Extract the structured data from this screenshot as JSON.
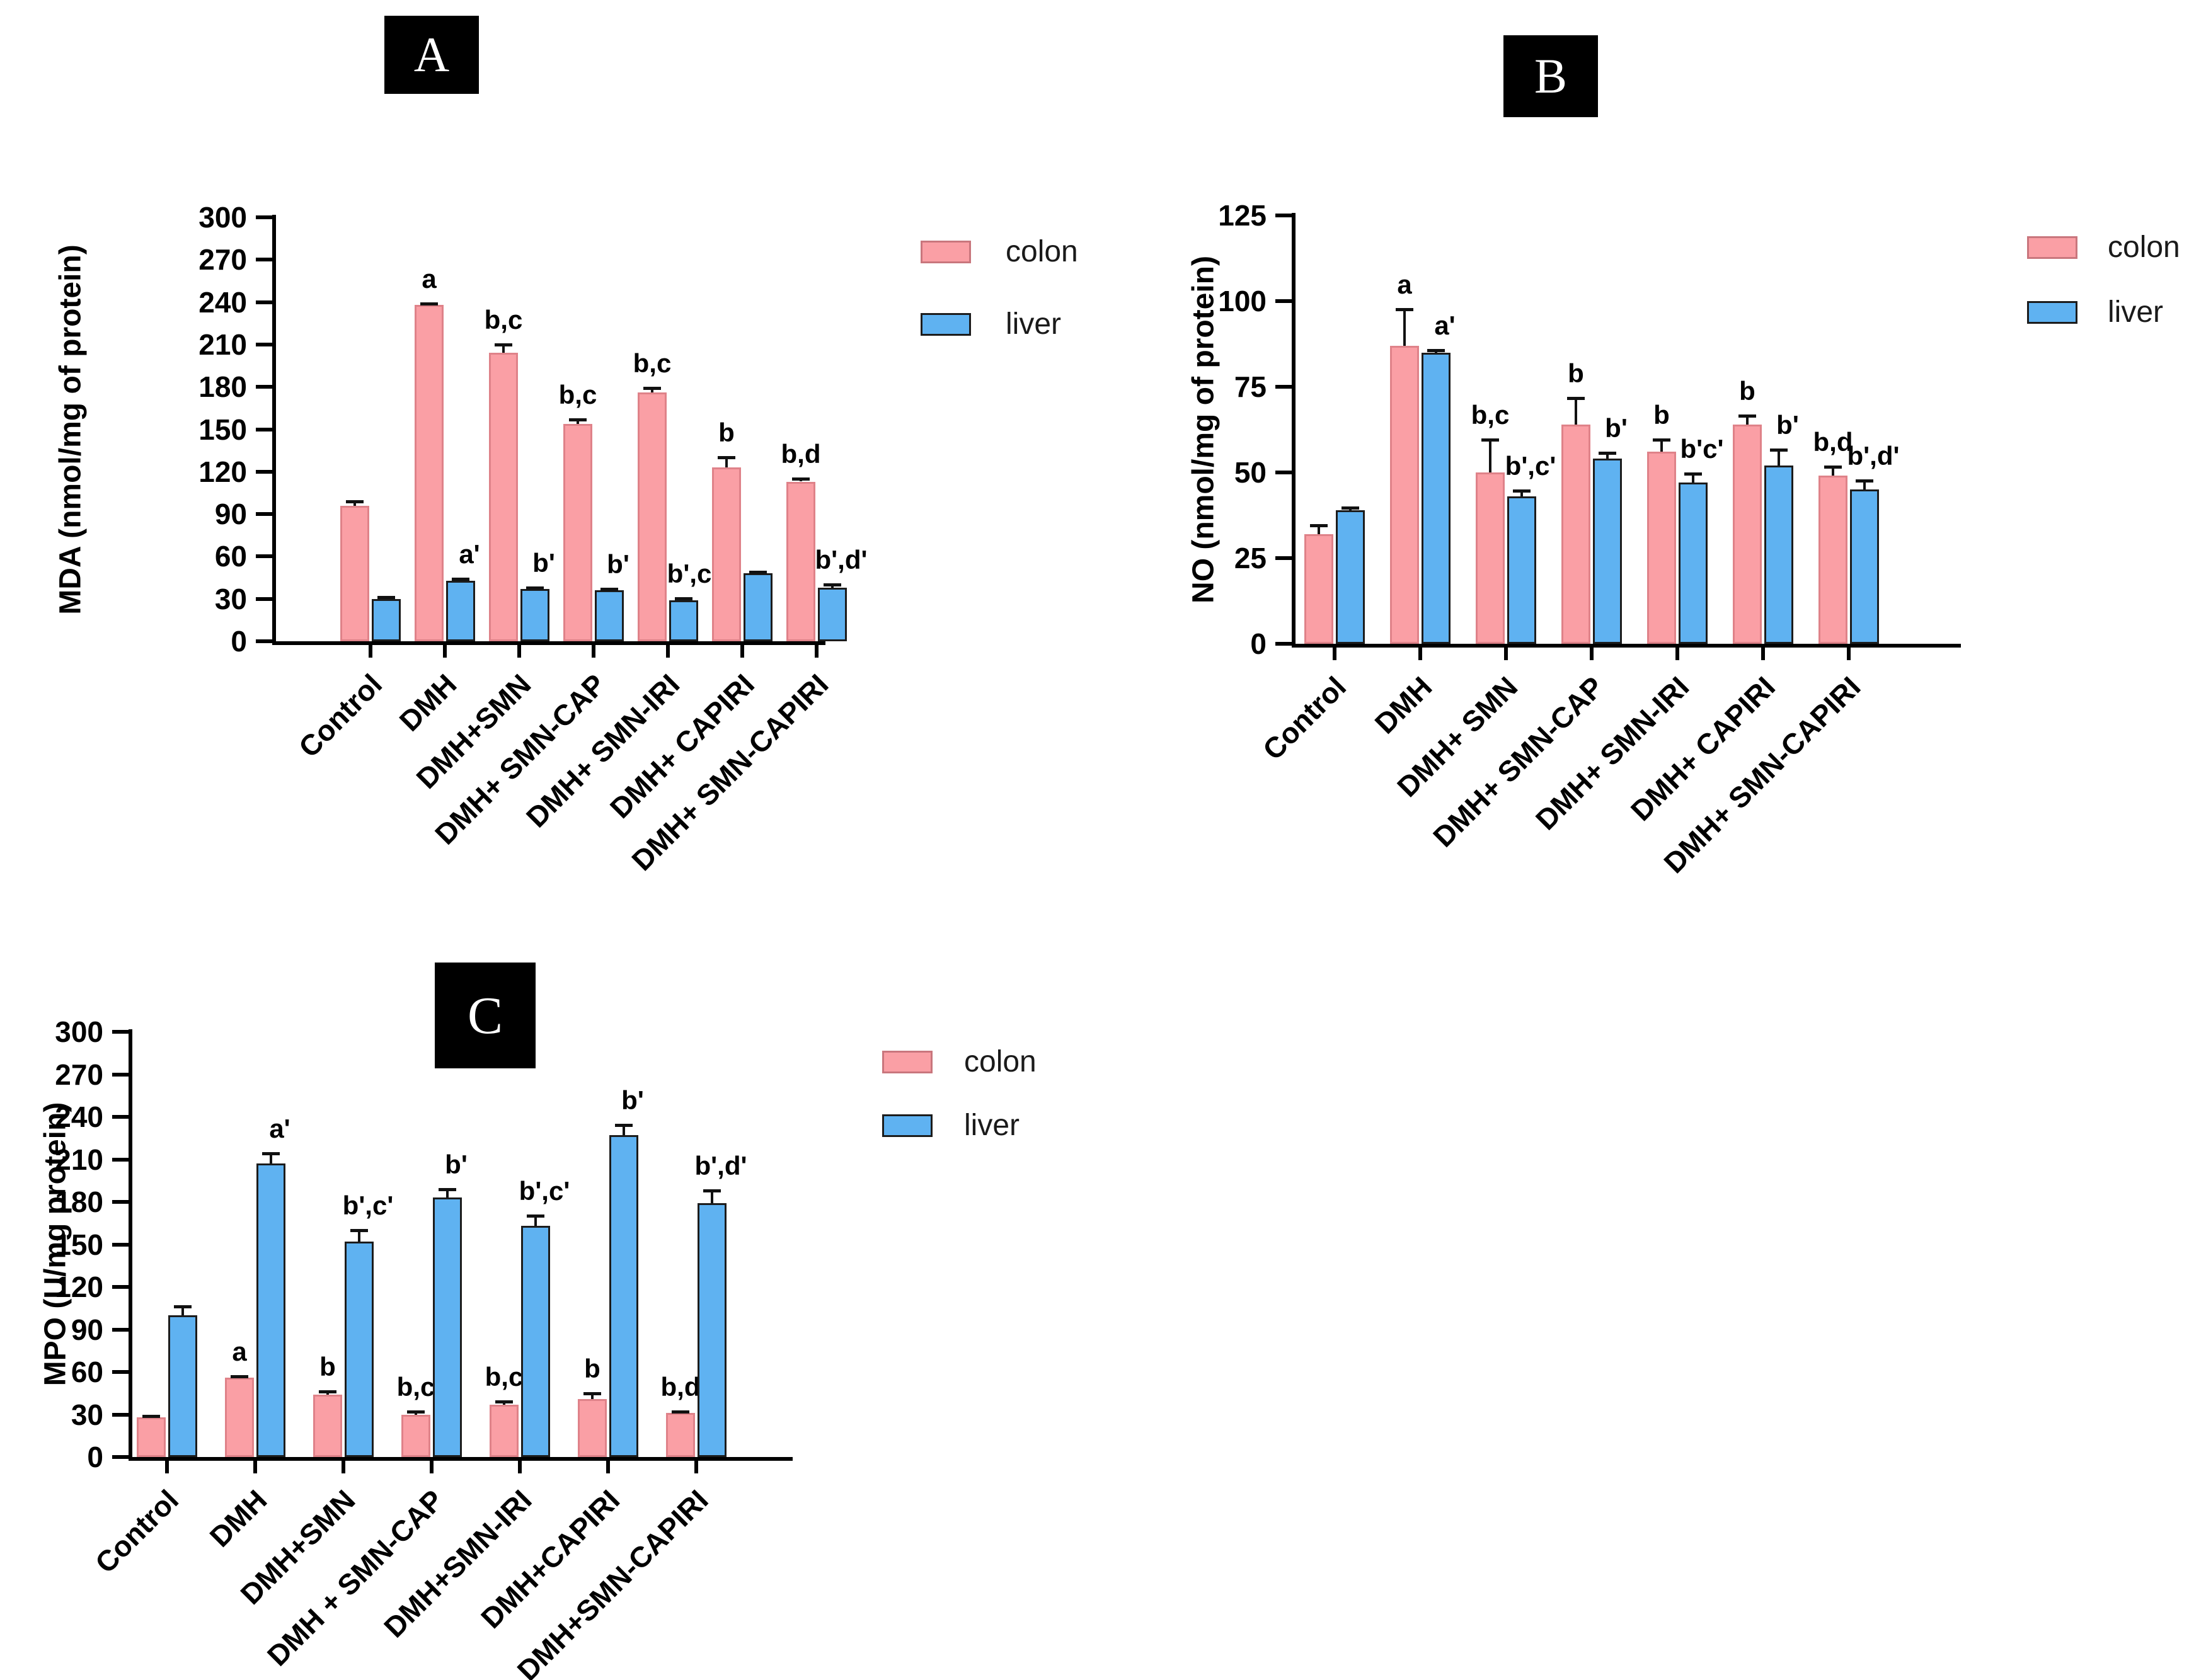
{
  "figure": {
    "background": "#ffffff",
    "legend_labels": {
      "colon": "colon",
      "liver": "liver"
    },
    "colors": {
      "colon_fill": "#fa9fa5",
      "colon_border": "#df8289",
      "liver_fill": "#5fb2f1",
      "liver_border": "#1c1c1c",
      "axis": "#000000",
      "panel_label_bg": "#000000",
      "panel_label_fg": "#ffffff"
    }
  },
  "chart_data": [
    {
      "panel_label": "A",
      "type": "bar",
      "title": "A",
      "ylabel": "MDA (nmol/mg of protein)",
      "xlabel": "",
      "ylim": [
        0,
        300
      ],
      "ytick_step": 30,
      "grid": false,
      "legend_position": "right",
      "legend": [
        "colon",
        "liver"
      ],
      "categories": [
        "Control",
        "DMH",
        "DMH+SMN",
        "DMH+ SMN-CAP",
        "DMH+ SMN-IRI",
        "DMH+ CAPIRI",
        "DMH+ SMN-CAPIRI"
      ],
      "series": [
        {
          "name": "colon",
          "values": [
            96,
            238,
            204,
            154,
            176,
            123,
            113
          ],
          "errors": [
            4,
            2,
            7,
            4,
            4,
            8,
            3
          ],
          "annotations": [
            "",
            "a",
            "b,c",
            "b,c",
            "b,c",
            "b",
            "b,d"
          ]
        },
        {
          "name": "liver",
          "values": [
            30,
            43,
            37,
            36,
            29,
            48,
            38
          ],
          "errors": [
            2,
            2,
            2,
            2,
            2,
            2,
            3
          ],
          "annotations": [
            "",
            "a'",
            "b'",
            "b'",
            "b',c'",
            "",
            "b',d'"
          ]
        }
      ]
    },
    {
      "panel_label": "B",
      "type": "bar",
      "title": "B",
      "ylabel": "NO (nmol/mg of protein)",
      "xlabel": "",
      "ylim": [
        0,
        125
      ],
      "ytick_step": 25,
      "grid": false,
      "legend_position": "right",
      "legend": [
        "colon",
        "liver"
      ],
      "categories": [
        "Control",
        "DMH",
        "DMH+ SMN",
        "DMH+ SMN-CAP",
        "DMH+ SMN-IRI",
        "DMH+ CAPIRI",
        "DMH+ SMN-CAPIRI"
      ],
      "series": [
        {
          "name": "colon",
          "values": [
            32,
            87,
            50,
            64,
            56,
            64,
            49
          ],
          "errors": [
            3,
            11,
            10,
            8,
            4,
            3,
            3
          ],
          "annotations": [
            "",
            "a",
            "b,c",
            "b",
            "b",
            "b",
            "b,d"
          ]
        },
        {
          "name": "liver",
          "values": [
            39,
            85,
            43,
            54,
            47,
            52,
            45
          ],
          "errors": [
            1,
            1,
            2,
            2,
            3,
            5,
            3
          ],
          "annotations": [
            "",
            "a'",
            "b',c'",
            "b'",
            "b'c'",
            "b'",
            "b',d'"
          ]
        }
      ]
    },
    {
      "panel_label": "C",
      "type": "bar",
      "title": "C",
      "ylabel": "MPO (U/mg protein)",
      "xlabel": "",
      "ylim": [
        0,
        300
      ],
      "ytick_step": 30,
      "grid": false,
      "legend_position": "right",
      "legend": [
        "colon",
        "liver"
      ],
      "categories": [
        "Control",
        "DMH",
        "DMH+SMN",
        "DMH + SMN-CAP",
        "DMH+SMN-IRI",
        "DMH+CAPIRI",
        "DMH+SMN-CAPIRI"
      ],
      "series": [
        {
          "name": "colon",
          "values": [
            28,
            56,
            44,
            30,
            37,
            41,
            31
          ],
          "errors": [
            2,
            2,
            3,
            3,
            3,
            5,
            2
          ],
          "annotations": [
            "",
            "a",
            "b",
            "b,c",
            "b,c",
            "b",
            "b,d"
          ]
        },
        {
          "name": "liver",
          "values": [
            100,
            207,
            152,
            183,
            163,
            227,
            179
          ],
          "errors": [
            7,
            8,
            9,
            7,
            8,
            8,
            10
          ],
          "annotations": [
            "",
            "a'",
            "b',c'",
            "b'",
            "b',c'",
            "b'",
            "b',d'"
          ]
        }
      ]
    }
  ]
}
